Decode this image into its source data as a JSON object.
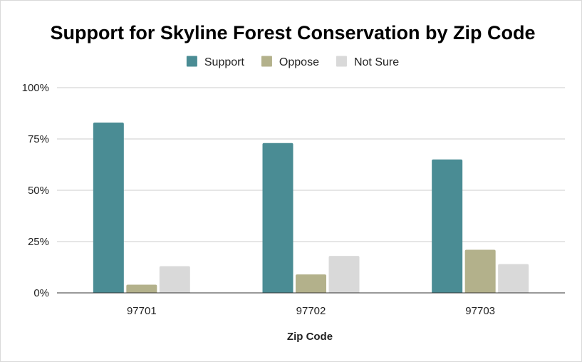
{
  "chart_data": {
    "type": "bar",
    "title": "Support for Skyline Forest Conservation by Zip Code",
    "xlabel": "Zip Code",
    "ylabel": "",
    "categories": [
      "97701",
      "97702",
      "97703"
    ],
    "series": [
      {
        "name": "Support",
        "color": "#4a8c94",
        "values": [
          83,
          73,
          65
        ]
      },
      {
        "name": "Oppose",
        "color": "#b3b18b",
        "values": [
          4,
          9,
          21
        ]
      },
      {
        "name": "Not Sure",
        "color": "#d9d9d9",
        "values": [
          13,
          18,
          14
        ]
      }
    ],
    "ylim": [
      0,
      100
    ],
    "yticks": [
      "0%",
      "25%",
      "50%",
      "75%",
      "100%"
    ],
    "ytick_values": [
      0,
      25,
      50,
      75,
      100
    ],
    "grid": true,
    "legend_position": "top-center"
  }
}
